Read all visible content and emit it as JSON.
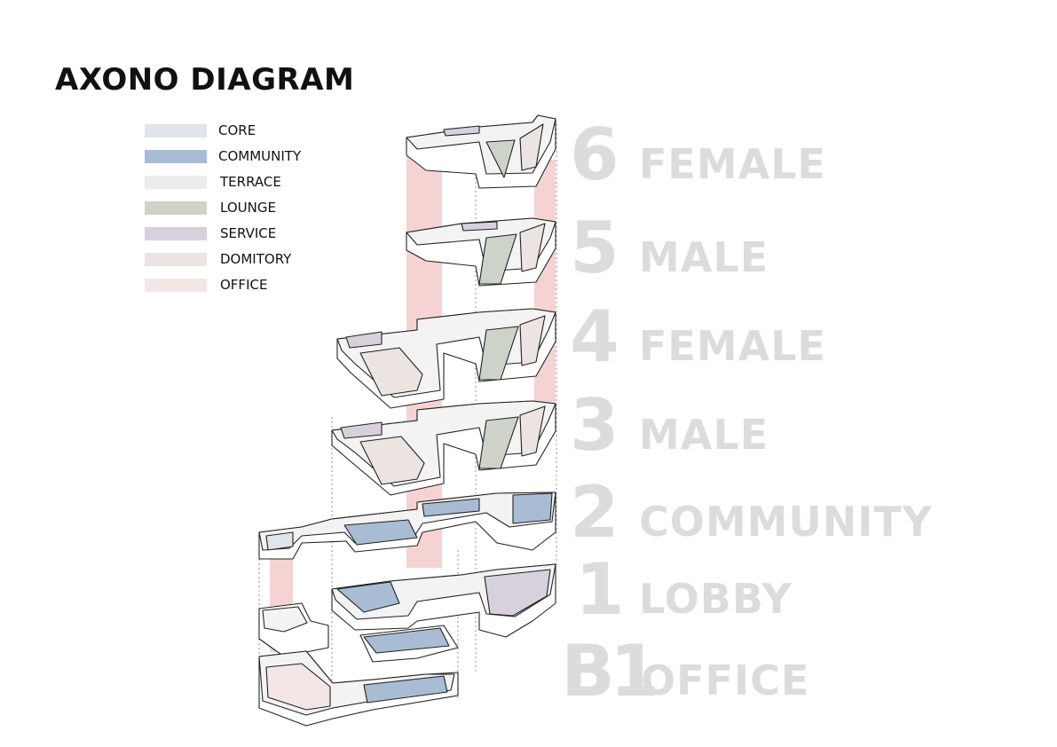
{
  "title": "AXONO DIAGRAM",
  "legend": [
    {
      "label": "CORE",
      "color": "#dfe5ea"
    },
    {
      "label": "COMMUNITY",
      "color": "#a8bdd3"
    },
    {
      "label": "TERRACE",
      "color": "#ececec"
    },
    {
      "label": "LOUNGE",
      "color": "#cdd3c9"
    },
    {
      "label": "SERVICE",
      "color": "#d8d1dd"
    },
    {
      "label": "DOMITORY",
      "color": "#ece4e0"
    },
    {
      "label": "OFFICE",
      "color": "#f5e6e6"
    }
  ],
  "floors": [
    {
      "number": "6",
      "name": "FEMALE"
    },
    {
      "number": "5",
      "name": "MALE"
    },
    {
      "number": "4",
      "name": "FEMALE"
    },
    {
      "number": "3",
      "name": "MALE"
    },
    {
      "number": "2",
      "name": "COMMUNITY"
    },
    {
      "number": "1",
      "name": "LOBBY"
    },
    {
      "number": "B1",
      "name": "OFFICE"
    }
  ],
  "colors": {
    "shaft": "#f4c8c8",
    "outline": "#222222",
    "wall_side": "#ffffff",
    "label_gray": "#dcdcdc"
  }
}
